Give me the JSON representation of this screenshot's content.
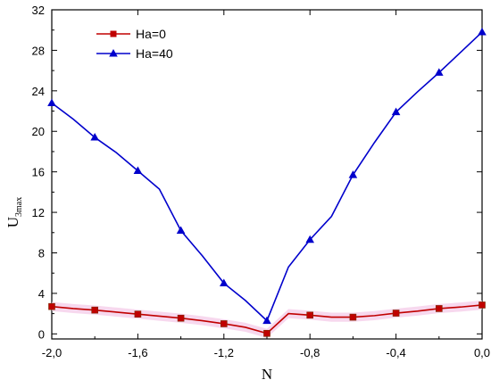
{
  "chart_data": {
    "type": "line",
    "xlabel": "N",
    "ylabel_main": "U",
    "ylabel_sub": "3max",
    "xlim": [
      -2.0,
      0.0
    ],
    "ylim": [
      -0.5,
      32
    ],
    "x_ticks": [
      -2.0,
      -1.6,
      -1.2,
      -0.8,
      -0.4,
      0.0
    ],
    "x_tick_labels": [
      "-2,0",
      "-1,6",
      "-1,2",
      "-0,8",
      "-0,4",
      "0,0"
    ],
    "y_ticks": [
      0,
      4,
      8,
      12,
      16,
      20,
      24,
      28,
      32
    ],
    "y_tick_labels": [
      "0",
      "4",
      "8",
      "12",
      "16",
      "20",
      "24",
      "28",
      "32"
    ],
    "grid": false,
    "legend_position": "top-left",
    "series": [
      {
        "name": "Ha=0",
        "color": "#c00000",
        "marker": "square",
        "x": [
          -2.0,
          -1.9,
          -1.8,
          -1.7,
          -1.6,
          -1.5,
          -1.4,
          -1.3,
          -1.2,
          -1.1,
          -1.0,
          -0.9,
          -0.8,
          -0.7,
          -0.6,
          -0.5,
          -0.4,
          -0.3,
          -0.2,
          -0.1,
          0.0
        ],
        "values": [
          2.7,
          2.5,
          2.35,
          2.15,
          1.95,
          1.75,
          1.55,
          1.3,
          1.0,
          0.65,
          0.05,
          2.0,
          1.85,
          1.65,
          1.65,
          1.8,
          2.05,
          2.25,
          2.5,
          2.65,
          2.85
        ],
        "marker_every": 2
      },
      {
        "name": "Ha=40",
        "color": "#0000cc",
        "marker": "triangle",
        "x": [
          -2.0,
          -1.9,
          -1.8,
          -1.7,
          -1.6,
          -1.5,
          -1.4,
          -1.3,
          -1.2,
          -1.1,
          -1.0,
          -0.9,
          -0.8,
          -0.7,
          -0.6,
          -0.5,
          -0.4,
          -0.3,
          -0.2,
          -0.1,
          0.0
        ],
        "values": [
          22.8,
          21.2,
          19.4,
          17.9,
          16.1,
          14.3,
          10.2,
          7.7,
          5.0,
          3.3,
          1.3,
          6.6,
          9.3,
          11.6,
          15.7,
          18.9,
          21.9,
          23.9,
          25.8,
          27.8,
          29.8
        ],
        "marker_every": 2
      }
    ]
  }
}
